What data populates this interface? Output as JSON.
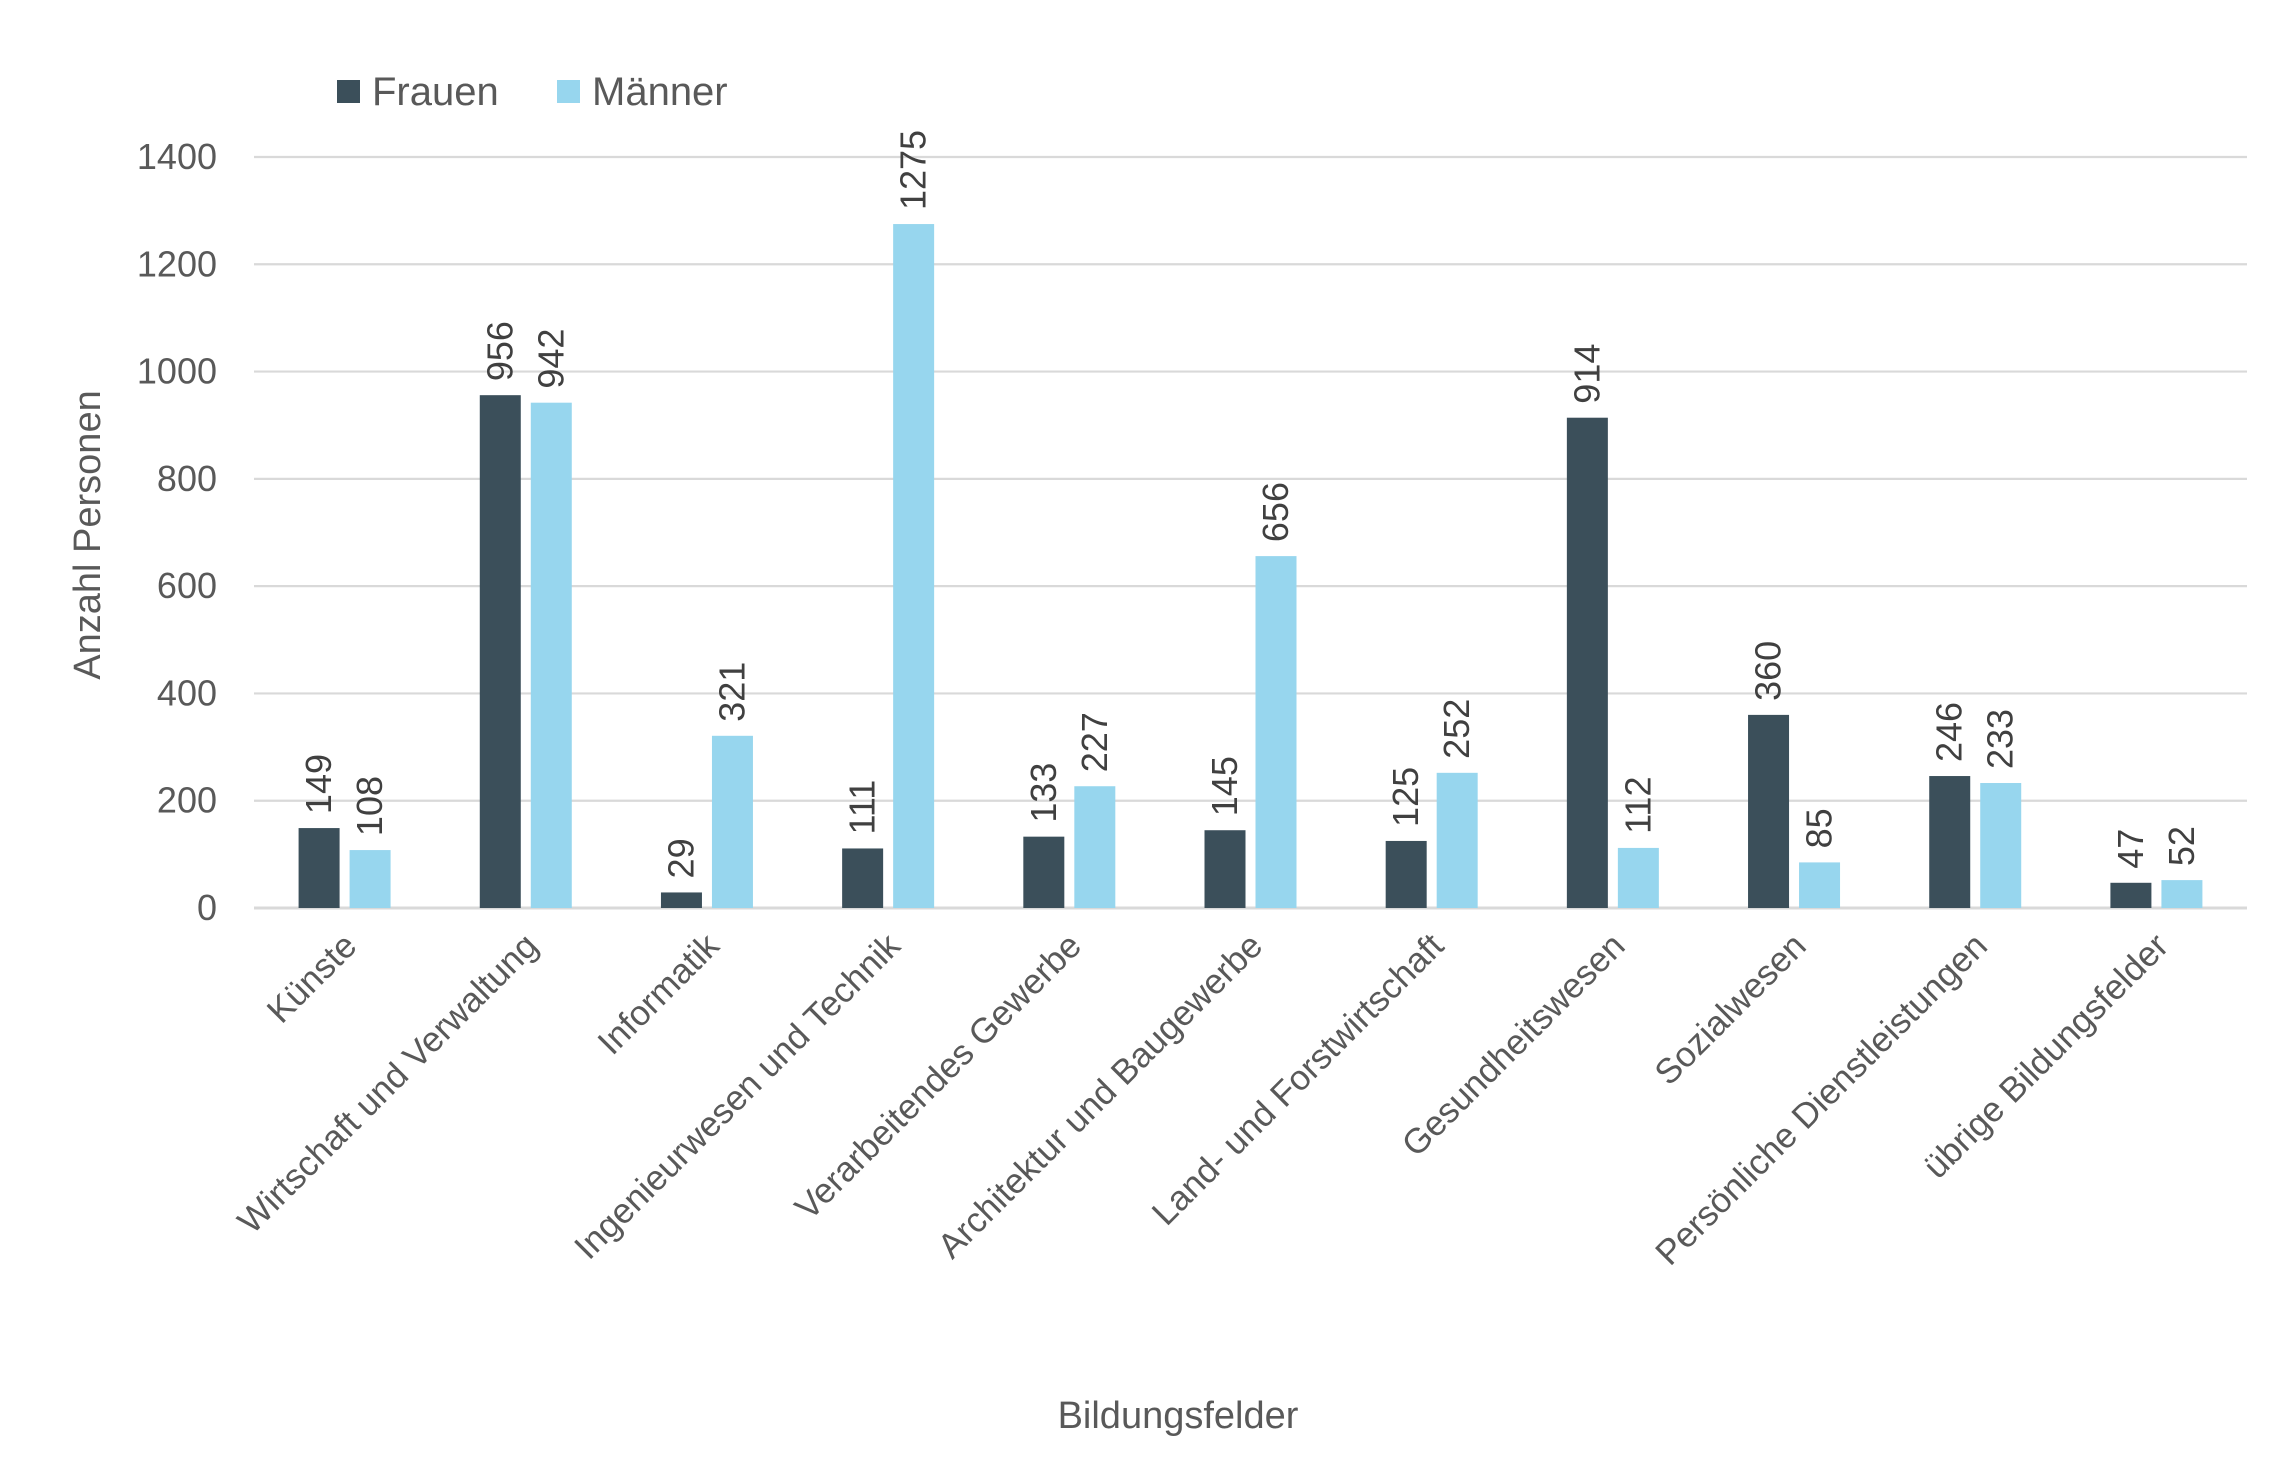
{
  "chart_data": {
    "type": "bar",
    "xlabel": "Bildungsfelder",
    "ylabel": "Anzahl Personen",
    "ylim": [
      0,
      1400
    ],
    "yticks": [
      0,
      200,
      400,
      600,
      800,
      1000,
      1200,
      1400
    ],
    "grid": true,
    "legend_position": "top-left",
    "categories": [
      "Künste",
      "Wirtschaft und Verwaltung",
      "Informatik",
      "Ingenieurwesen und Technik",
      "Verarbeitendes Gewerbe",
      "Architektur und Baugewerbe",
      "Land- und Forstwirtschaft",
      "Gesundheitswesen",
      "Sozialwesen",
      "Persönliche Dienstleistungen",
      "übrige Bildungsfelder"
    ],
    "series": [
      {
        "name": "Frauen",
        "color": "#3b4f5a",
        "values": [
          149,
          956,
          29,
          111,
          133,
          145,
          125,
          914,
          360,
          246,
          47
        ]
      },
      {
        "name": "Männer",
        "color": "#97d6ee",
        "values": [
          108,
          942,
          321,
          1275,
          227,
          656,
          252,
          112,
          85,
          233,
          52
        ]
      }
    ]
  }
}
